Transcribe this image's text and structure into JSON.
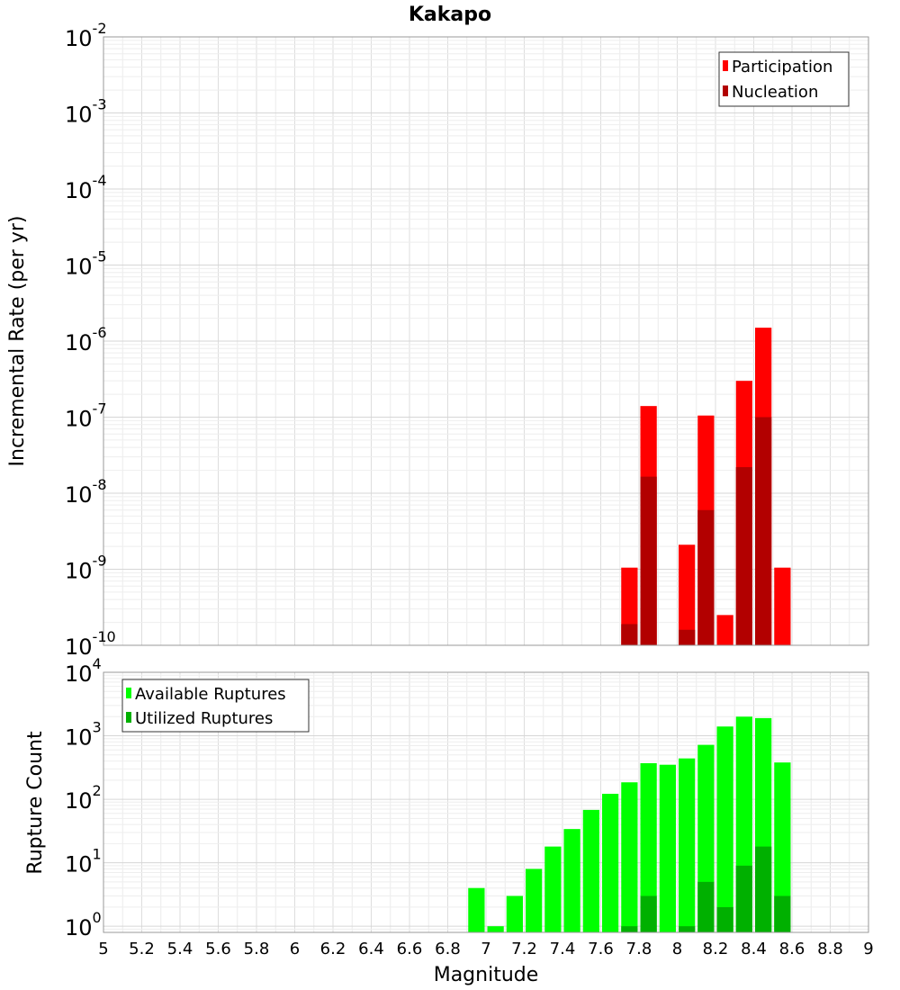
{
  "chart_data": [
    {
      "type": "bar",
      "title": "Kakapo",
      "ylabel": "Incremental Rate (per yr)",
      "xlabel": "",
      "yscale": "log",
      "ylim": [
        1e-10,
        0.01
      ],
      "xlim": [
        5,
        9
      ],
      "bin_width": 0.1,
      "grid": true,
      "legend_position": "top-right",
      "y_ticks": [
        {
          "base": "10",
          "exp": "-10"
        },
        {
          "base": "10",
          "exp": "-9"
        },
        {
          "base": "10",
          "exp": "-8"
        },
        {
          "base": "10",
          "exp": "-7"
        },
        {
          "base": "10",
          "exp": "-6"
        },
        {
          "base": "10",
          "exp": "-5"
        },
        {
          "base": "10",
          "exp": "-4"
        },
        {
          "base": "10",
          "exp": "-3"
        },
        {
          "base": "10",
          "exp": "-2"
        }
      ],
      "x": [
        7.75,
        7.85,
        8.05,
        8.15,
        8.25,
        8.35,
        8.45,
        8.55
      ],
      "series": [
        {
          "name": "Participation",
          "color": "#ff0000",
          "values": [
            1.05e-09,
            1.4e-07,
            2.1e-09,
            1.05e-07,
            2.5e-10,
            3e-07,
            1.5e-06,
            1.05e-09
          ]
        },
        {
          "name": "Nucleation",
          "color": "#b20000",
          "values": [
            1.9e-10,
            1.65e-08,
            1.6e-10,
            6e-09,
            null,
            2.2e-08,
            1e-07,
            null
          ]
        }
      ]
    },
    {
      "type": "bar",
      "title": "",
      "ylabel": "Rupture Count",
      "xlabel": "Magnitude",
      "yscale": "log",
      "ylim": [
        0.8,
        10000
      ],
      "xlim": [
        5,
        9
      ],
      "bin_width": 0.1,
      "grid": true,
      "legend_position": "top-left",
      "y_ticks": [
        {
          "base": "10",
          "exp": "0"
        },
        {
          "base": "10",
          "exp": "1"
        },
        {
          "base": "10",
          "exp": "2"
        },
        {
          "base": "10",
          "exp": "3"
        },
        {
          "base": "10",
          "exp": "4"
        }
      ],
      "x_ticks": [
        "5",
        "5.2",
        "5.4",
        "5.6",
        "5.8",
        "6",
        "6.2",
        "6.4",
        "6.6",
        "6.8",
        "7",
        "7.2",
        "7.4",
        "7.6",
        "7.8",
        "8",
        "8.2",
        "8.4",
        "8.6",
        "8.8",
        "9"
      ],
      "x": [
        6.95,
        7.05,
        7.15,
        7.25,
        7.35,
        7.45,
        7.55,
        7.65,
        7.75,
        7.85,
        7.95,
        8.05,
        8.15,
        8.25,
        8.35,
        8.45,
        8.55
      ],
      "series": [
        {
          "name": "Available Ruptures",
          "color": "#00ff00",
          "values": [
            4,
            1,
            3,
            8,
            18,
            34,
            68,
            122,
            185,
            370,
            350,
            440,
            720,
            1400,
            2000,
            1900,
            380
          ]
        },
        {
          "name": "Utilized Ruptures",
          "color": "#00b000",
          "values": [
            null,
            null,
            null,
            null,
            null,
            null,
            null,
            null,
            1,
            3,
            null,
            1,
            5,
            2,
            9,
            18,
            3
          ]
        }
      ]
    }
  ]
}
